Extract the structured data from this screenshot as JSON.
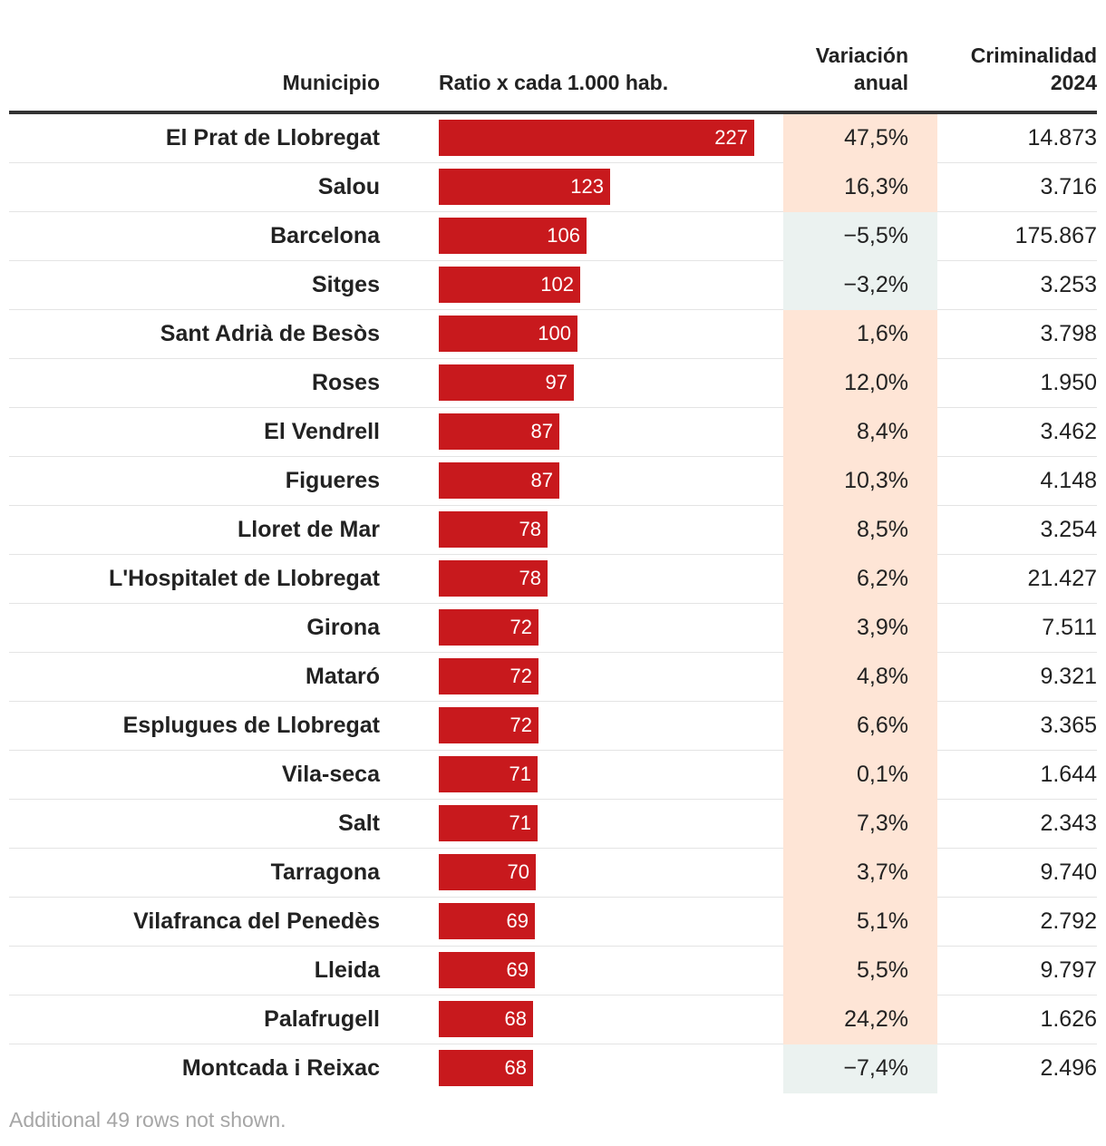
{
  "header": {
    "municipio": "Municipio",
    "ratio": "Ratio x cada 1.000 hab.",
    "variacion": "Variación\nanual",
    "criminalidad": "Criminalidad\n2024"
  },
  "footnote": "Additional 49 rows not shown.",
  "colors": {
    "bar": "#c8191d",
    "positive_bg": "#fee5d6",
    "negative_bg": "#ebf2f0"
  },
  "chart_data": {
    "type": "table",
    "bar_max": 227,
    "columns": [
      "Municipio",
      "Ratio x cada 1.000 hab.",
      "Variación anual",
      "Criminalidad 2024"
    ],
    "rows": [
      {
        "municipio": "El Prat de Llobregat",
        "ratio": 227,
        "variacion": "47,5%",
        "criminalidad": "14.873"
      },
      {
        "municipio": "Salou",
        "ratio": 123,
        "variacion": "16,3%",
        "criminalidad": "3.716"
      },
      {
        "municipio": "Barcelona",
        "ratio": 106,
        "variacion": "−5,5%",
        "criminalidad": "175.867"
      },
      {
        "municipio": "Sitges",
        "ratio": 102,
        "variacion": "−3,2%",
        "criminalidad": "3.253"
      },
      {
        "municipio": "Sant Adrià de Besòs",
        "ratio": 100,
        "variacion": "1,6%",
        "criminalidad": "3.798"
      },
      {
        "municipio": "Roses",
        "ratio": 97,
        "variacion": "12,0%",
        "criminalidad": "1.950"
      },
      {
        "municipio": "El Vendrell",
        "ratio": 87,
        "variacion": "8,4%",
        "criminalidad": "3.462"
      },
      {
        "municipio": "Figueres",
        "ratio": 87,
        "variacion": "10,3%",
        "criminalidad": "4.148"
      },
      {
        "municipio": "Lloret de Mar",
        "ratio": 78,
        "variacion": "8,5%",
        "criminalidad": "3.254"
      },
      {
        "municipio": "L'Hospitalet de Llobregat",
        "ratio": 78,
        "variacion": "6,2%",
        "criminalidad": "21.427"
      },
      {
        "municipio": "Girona",
        "ratio": 72,
        "variacion": "3,9%",
        "criminalidad": "7.511"
      },
      {
        "municipio": "Mataró",
        "ratio": 72,
        "variacion": "4,8%",
        "criminalidad": "9.321"
      },
      {
        "municipio": "Esplugues de Llobregat",
        "ratio": 72,
        "variacion": "6,6%",
        "criminalidad": "3.365"
      },
      {
        "municipio": "Vila-seca",
        "ratio": 71,
        "variacion": "0,1%",
        "criminalidad": "1.644"
      },
      {
        "municipio": "Salt",
        "ratio": 71,
        "variacion": "7,3%",
        "criminalidad": "2.343"
      },
      {
        "municipio": "Tarragona",
        "ratio": 70,
        "variacion": "3,7%",
        "criminalidad": "9.740"
      },
      {
        "municipio": "Vilafranca del Penedès",
        "ratio": 69,
        "variacion": "5,1%",
        "criminalidad": "2.792"
      },
      {
        "municipio": "Lleida",
        "ratio": 69,
        "variacion": "5,5%",
        "criminalidad": "9.797"
      },
      {
        "municipio": "Palafrugell",
        "ratio": 68,
        "variacion": "24,2%",
        "criminalidad": "1.626"
      },
      {
        "municipio": "Montcada i Reixac",
        "ratio": 68,
        "variacion": "−7,4%",
        "criminalidad": "2.496"
      }
    ]
  }
}
